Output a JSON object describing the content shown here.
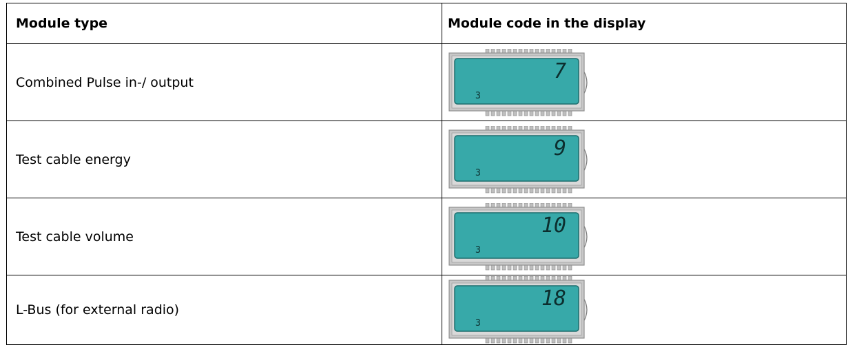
{
  "table": {
    "header": [
      "Module type",
      "Module code in the display"
    ],
    "rows": [
      {
        "type": "Combined Pulse in-/ output",
        "display": {
          "code": "7",
          "small": "3"
        }
      },
      {
        "type": "Test cable energy",
        "display": {
          "code": "9",
          "small": "3"
        }
      },
      {
        "type": "Test cable volume",
        "display": {
          "code": "10",
          "small": "3"
        }
      },
      {
        "type": "L-Bus (for external radio)",
        "display": {
          "code": "18",
          "small": "3"
        }
      }
    ]
  }
}
